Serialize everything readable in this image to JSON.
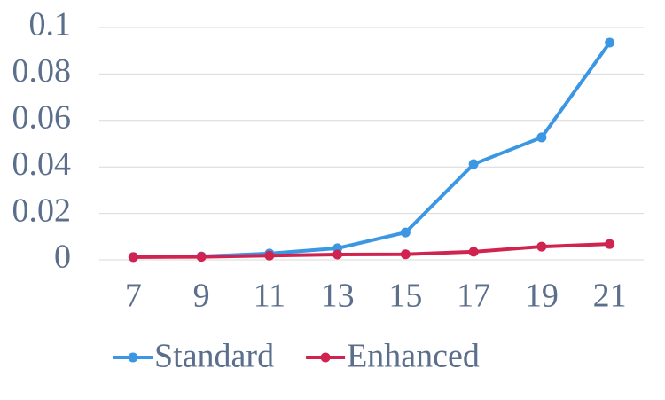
{
  "chart_data": {
    "type": "line",
    "categories": [
      "7",
      "9",
      "11",
      "13",
      "15",
      "17",
      "19",
      "21"
    ],
    "series": [
      {
        "name": "Standard",
        "color": "#3b97e3",
        "values": [
          0.0012,
          0.0015,
          0.0027,
          0.005,
          0.0118,
          0.0412,
          0.0527,
          0.0935
        ]
      },
      {
        "name": "Enhanced",
        "color": "#d0234f",
        "values": [
          0.0012,
          0.0013,
          0.0018,
          0.0023,
          0.0024,
          0.0035,
          0.0057,
          0.0068
        ]
      }
    ],
    "ylim": [
      0,
      0.1
    ],
    "yticks": [
      0,
      0.02,
      0.04,
      0.06,
      0.08,
      0.1
    ],
    "grid": true,
    "legend": "bottom"
  }
}
